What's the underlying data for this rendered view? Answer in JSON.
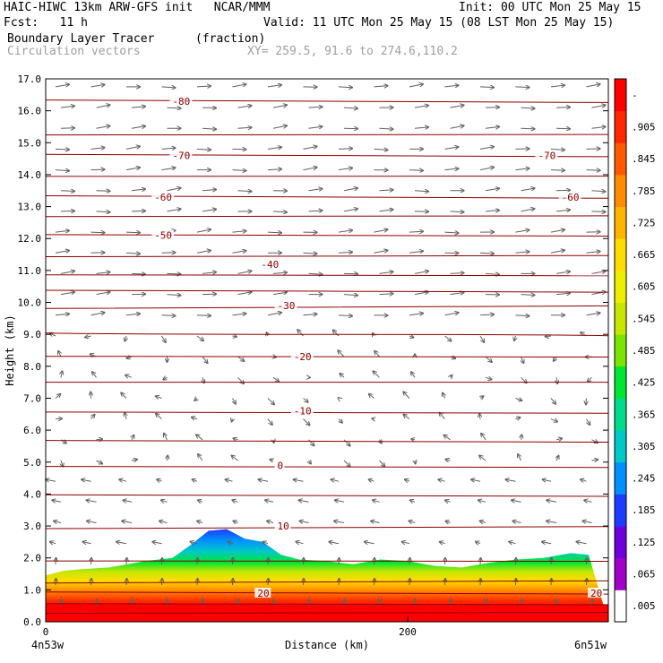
{
  "header": {
    "model_line": "HAIC-HIWC 13km ARW-GFS init   NCAR/MMM",
    "init_line": "Init: 00 UTC Mon 25 May 15",
    "fcst_line": "Fcst:   11 h",
    "valid_line": "Valid: 11 UTC Mon 25 May 15 (08 LST Mon 25 May 15)",
    "field_name": "Boundary Layer Tracer",
    "field_units": "(fraction)",
    "vector_name": "Circulation vectors",
    "xy_text": "XY= 259.5, 91.6 to 274.6,110.2"
  },
  "chart_data": {
    "type": "heatmap",
    "xlabel": "Distance (km)",
    "ylabel": "Height (km)",
    "xlim": [
      0,
      300
    ],
    "ylim": [
      0,
      17
    ],
    "x_ticks": [
      0,
      200
    ],
    "y_ticks": [
      "0.0",
      "1.0",
      "2.0",
      "3.0",
      "4.0",
      "5.0",
      "6.0",
      "7.0",
      "8.0",
      "9.0",
      "10.0",
      "11.0",
      "12.0",
      "13.0",
      "14.0",
      "15.0",
      "16.0",
      "17.0"
    ],
    "x_end_labels": [
      "4n53w",
      "6n51w"
    ],
    "colorbar_labels": [
      ".005",
      ".065",
      ".125",
      ".185",
      ".245",
      ".305",
      ".365",
      ".425",
      ".485",
      ".545",
      ".605",
      ".665",
      ".725",
      ".785",
      ".845",
      ".905",
      "-"
    ],
    "colorbar_colors": [
      "#ffffff",
      "#a000c8",
      "#6e00dc",
      "#1e3cff",
      "#0090ff",
      "#00c8c8",
      "#00dc8c",
      "#00e632",
      "#7ae600",
      "#c8e600",
      "#ecf000",
      "#ffdc00",
      "#ffb400",
      "#ff8c00",
      "#ff5a00",
      "#ff2800",
      "#ff0000"
    ],
    "tracer_top_km": {
      "x_km": [
        0,
        10,
        20,
        35,
        55,
        70,
        80,
        90,
        100,
        110,
        120,
        130,
        140,
        155,
        170,
        185,
        200,
        215,
        230,
        245,
        260,
        275,
        285,
        290,
        300
      ],
      "top": [
        1.45,
        1.6,
        1.65,
        1.7,
        1.9,
        2.0,
        2.4,
        2.85,
        2.9,
        2.6,
        2.5,
        2.1,
        1.95,
        1.9,
        1.8,
        1.95,
        1.9,
        1.75,
        1.7,
        1.85,
        1.95,
        2.0,
        2.1,
        2.15,
        2.1
      ]
    },
    "temperature_contours": [
      {
        "label": "20",
        "label_x_km": 117,
        "label_y": 0.9
      },
      {
        "label": "20",
        "label_x_km": 312,
        "label_y": 0.9
      },
      {
        "label": "10",
        "label_x_km": 128,
        "label_y": 3.0
      },
      {
        "label": "0",
        "label_x_km": 128,
        "label_y": 4.9
      },
      {
        "label": "-10",
        "label_x_km": 137,
        "label_y": 6.6
      },
      {
        "label": "-20",
        "label_x_km": 137,
        "label_y": 8.3
      },
      {
        "label": "-30",
        "label_x_km": 128,
        "label_y": 9.9
      },
      {
        "label": "-40",
        "label_x_km": 119,
        "label_y": 11.2
      },
      {
        "label": "-50",
        "label_x_km": 60,
        "label_y": 12.1
      },
      {
        "label": "-60",
        "label_x_km": 60,
        "label_y": 13.3
      },
      {
        "label": "-60",
        "label_x_km": 285,
        "label_y": 13.3
      },
      {
        "label": "-70",
        "label_x_km": 70,
        "label_y": 14.6
      },
      {
        "label": "-70",
        "label_x_km": 272,
        "label_y": 14.6
      },
      {
        "label": "-80",
        "label_x_km": 70,
        "label_y": 16.3
      }
    ],
    "colors": {
      "contour": "#8b0000",
      "vector": "#606060",
      "frame": "#000000"
    }
  }
}
